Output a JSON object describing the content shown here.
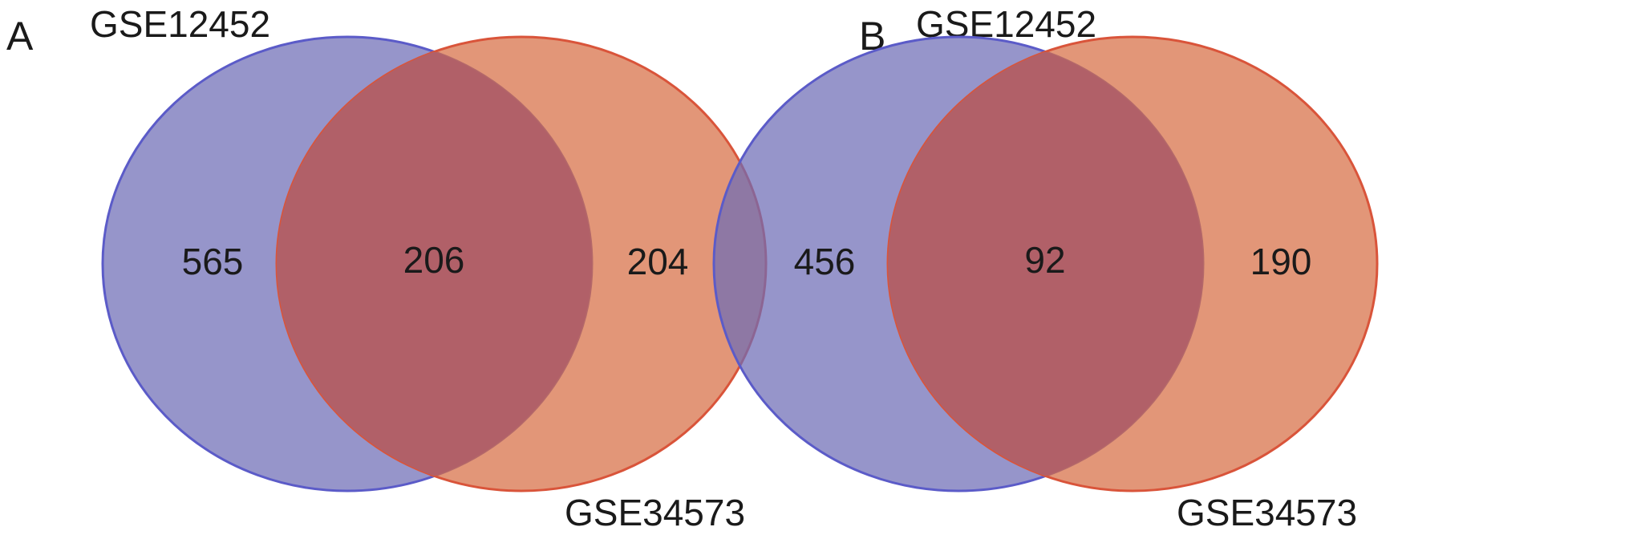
{
  "colors": {
    "set_left_fill": "#6d6cb6",
    "set_left_stroke": "#5b5bc8",
    "set_right_fill": "#d76d44",
    "set_right_stroke": "#d9543a",
    "overlap_fill": "#b16068",
    "text": "#1a1a1a"
  },
  "panels": [
    {
      "letter": "A",
      "set_left_label": "GSE12452",
      "set_right_label": "GSE34573",
      "left_only": "565",
      "intersection": "206",
      "right_only": "204"
    },
    {
      "letter": "B",
      "set_left_label": "GSE12452",
      "set_right_label": "GSE34573",
      "left_only": "456",
      "intersection": "92",
      "right_only": "190"
    }
  ]
}
